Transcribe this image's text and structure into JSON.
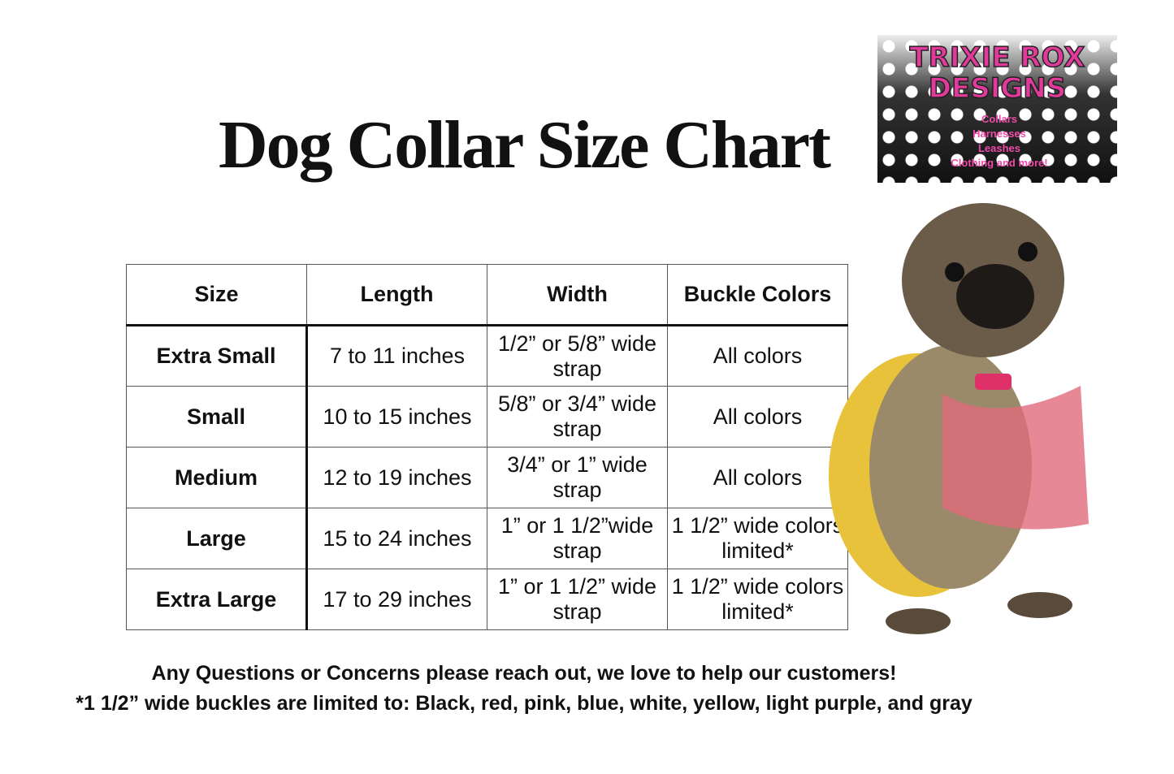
{
  "header": {
    "title": "Dog Collar Size Chart"
  },
  "logo": {
    "brand_line_1": "TRIXIE ROX",
    "brand_line_2": "DESIGNS",
    "items": [
      "Collars",
      "Harnesses",
      "Leashes",
      "Clothing and more!"
    ]
  },
  "table": {
    "columns": [
      "Size",
      "Length",
      "Width",
      "Buckle Colors"
    ],
    "rows": [
      [
        "Extra Small",
        "7 to 11 inches",
        "1/2” or 5/8” wide strap",
        "All colors"
      ],
      [
        "Small",
        "10 to 15 inches",
        "5/8” or 3/4” wide strap",
        "All colors"
      ],
      [
        "Medium",
        "12 to 19 inches",
        "3/4” or 1” wide strap",
        "All colors"
      ],
      [
        "Large",
        "15 to 24 inches",
        "1” or 1 1/2”wide strap",
        "1 1/2” wide colors limited*"
      ],
      [
        "Extra Large",
        "17 to 29 inches",
        "1” or 1 1/2” wide strap",
        "1 1/2” wide colors limited*"
      ]
    ]
  },
  "footer": {
    "note": "Any Questions or Concerns please reach out, we love to help our customers!",
    "footnote": "*1 1/2” wide buckles are limited to: Black, red, pink, blue, white, yellow, light purple, and gray"
  }
}
